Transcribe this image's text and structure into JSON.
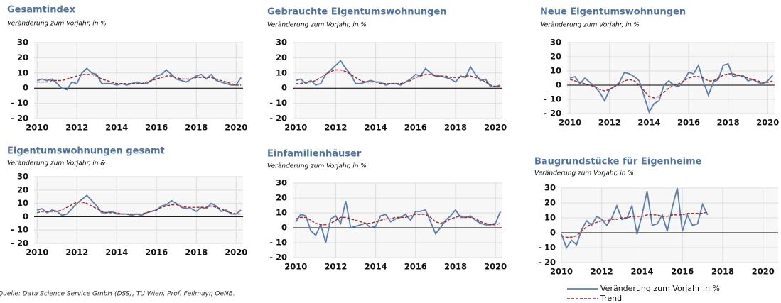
{
  "chart_data": [
    {
      "type": "line",
      "title": "Gesamtindex",
      "subtitle": "Veränderung zum Vorjahr, in %",
      "x": [
        2010,
        2010.25,
        2010.5,
        2010.75,
        2011,
        2011.25,
        2011.5,
        2011.75,
        2012,
        2012.25,
        2012.5,
        2012.75,
        2013,
        2013.25,
        2013.5,
        2013.75,
        2014,
        2014.25,
        2014.5,
        2014.75,
        2015,
        2015.25,
        2015.5,
        2015.75,
        2016,
        2016.25,
        2016.5,
        2016.75,
        2017,
        2017.25,
        2017.5,
        2017.75,
        2018,
        2018.25,
        2018.5,
        2018.75,
        2019,
        2019.25,
        2019.5,
        2019.75,
        2020,
        2020.25
      ],
      "series": [
        {
          "color": "#5b7fad",
          "values": [
            5,
            6,
            5,
            6,
            3,
            0,
            -1,
            4,
            3,
            10,
            13,
            10,
            9,
            3,
            3,
            3,
            2,
            3,
            2,
            3,
            4,
            3,
            3,
            5,
            8,
            9,
            12,
            9,
            6,
            5,
            4,
            6,
            8,
            9,
            6,
            9,
            5,
            4,
            3,
            2,
            2,
            7
          ]
        },
        {
          "color": "#a0282a",
          "dash": true,
          "values": [
            4,
            4,
            4,
            5,
            5,
            5,
            6,
            7,
            8,
            9,
            9,
            9,
            8,
            6,
            5,
            4,
            3,
            3,
            3,
            3,
            3,
            3,
            4,
            5,
            6,
            7,
            8,
            8,
            7,
            6,
            6,
            6,
            7,
            7,
            7,
            7,
            6,
            5,
            4,
            3,
            2,
            2
          ]
        }
      ],
      "xlim": [
        2009.85,
        2020.35
      ],
      "xticks": [
        2010,
        2012,
        2014,
        2016,
        2018,
        2020
      ],
      "ylim": [
        -20,
        30
      ],
      "yticks": [
        {
          "value": -20,
          "label": "- 20"
        },
        {
          "value": -10,
          "label": "- 10"
        },
        0,
        10,
        20,
        30
      ],
      "grid": true
    },
    {
      "type": "line",
      "title": "Gebrauchte Eigentumswohnungen",
      "subtitle": "Veränderung zum Vorjahr, in %",
      "x": [
        2010,
        2010.25,
        2010.5,
        2010.75,
        2011,
        2011.25,
        2011.5,
        2011.75,
        2012,
        2012.25,
        2012.5,
        2012.75,
        2013,
        2013.25,
        2013.5,
        2013.75,
        2014,
        2014.25,
        2014.5,
        2014.75,
        2015,
        2015.25,
        2015.5,
        2015.75,
        2016,
        2016.25,
        2016.5,
        2016.75,
        2017,
        2017.25,
        2017.5,
        2017.75,
        2018,
        2018.25,
        2018.5,
        2018.75,
        2019,
        2019.25,
        2019.5,
        2019.75,
        2020,
        2020.25
      ],
      "series": [
        {
          "color": "#5b7fad",
          "values": [
            5,
            6,
            3,
            5,
            2,
            3,
            9,
            12,
            15,
            18,
            13,
            9,
            3,
            3,
            4,
            5,
            4,
            4,
            2,
            3,
            3,
            2,
            4,
            6,
            9,
            8,
            13,
            10,
            8,
            8,
            7,
            6,
            4,
            8,
            7,
            14,
            9,
            5,
            6,
            1,
            1,
            2
          ]
        },
        {
          "color": "#a0282a",
          "dash": true,
          "values": [
            3,
            3,
            4,
            4,
            5,
            7,
            9,
            11,
            12,
            12,
            11,
            9,
            7,
            5,
            4,
            4,
            4,
            3,
            3,
            3,
            3,
            3,
            4,
            5,
            7,
            8,
            9,
            9,
            8,
            8,
            8,
            7,
            7,
            7,
            8,
            8,
            7,
            6,
            4,
            2,
            1,
            1
          ]
        }
      ],
      "xlim": [
        2009.85,
        2020.35
      ],
      "xticks": [
        2010,
        2012,
        2014,
        2016,
        2018,
        2020
      ],
      "ylim": [
        -20,
        30
      ],
      "yticks": [
        {
          "value": -20,
          "label": "- 20"
        },
        {
          "value": -10,
          "label": "- 10"
        },
        0,
        10,
        20,
        30
      ],
      "grid": true
    },
    {
      "type": "line",
      "title": "Neue Eigentumswohnungen",
      "subtitle": "Veränderung zum Vorjahr, in %",
      "x": [
        2010,
        2010.25,
        2010.5,
        2010.75,
        2011,
        2011.25,
        2011.5,
        2011.75,
        2012,
        2012.25,
        2012.5,
        2012.75,
        2013,
        2013.25,
        2013.5,
        2013.75,
        2014,
        2014.25,
        2014.5,
        2014.75,
        2015,
        2015.25,
        2015.5,
        2015.75,
        2016,
        2016.25,
        2016.5,
        2016.75,
        2017,
        2017.25,
        2017.5,
        2017.75,
        2018,
        2018.25,
        2018.5,
        2018.75,
        2019,
        2019.25,
        2019.5,
        2019.75,
        2020,
        2020.25
      ],
      "series": [
        {
          "color": "#5b7fad",
          "values": [
            5,
            6,
            1,
            5,
            2,
            -1,
            -5,
            -11,
            -3,
            -1,
            2,
            9,
            8,
            6,
            3,
            -8,
            -19,
            -13,
            -11,
            0,
            3,
            0,
            -1,
            3,
            9,
            8,
            14,
            2,
            -7,
            2,
            4,
            14,
            15,
            6,
            7,
            7,
            3,
            4,
            2,
            1,
            3,
            7
          ]
        },
        {
          "color": "#a0282a",
          "dash": true,
          "values": [
            4,
            3,
            2,
            1,
            0,
            -1,
            -3,
            -4,
            -3,
            -1,
            1,
            3,
            4,
            3,
            0,
            -4,
            -8,
            -9,
            -8,
            -5,
            -2,
            0,
            1,
            3,
            5,
            6,
            6,
            5,
            3,
            3,
            5,
            7,
            8,
            8,
            7,
            6,
            5,
            4,
            3,
            2,
            2,
            3
          ]
        }
      ],
      "xlim": [
        2009.85,
        2020.35
      ],
      "xticks": [
        2010,
        2012,
        2014,
        2016,
        2018,
        2020
      ],
      "ylim": [
        -20,
        30
      ],
      "yticks": [
        {
          "value": -20,
          "label": "- 20"
        },
        {
          "value": -10,
          "label": "- 10"
        },
        0,
        10,
        20,
        30
      ],
      "grid": true
    },
    {
      "type": "line",
      "title": "Eigentumswohnungen gesamt",
      "subtitle": "Veränderung zum Vorjahr, in &",
      "x": [
        2010,
        2010.25,
        2010.5,
        2010.75,
        2011,
        2011.25,
        2011.5,
        2011.75,
        2012,
        2012.25,
        2012.5,
        2012.75,
        2013,
        2013.25,
        2013.5,
        2013.75,
        2014,
        2014.25,
        2014.5,
        2014.75,
        2015,
        2015.25,
        2015.5,
        2015.75,
        2016,
        2016.25,
        2016.5,
        2016.75,
        2017,
        2017.25,
        2017.5,
        2017.75,
        2018,
        2018.25,
        2018.5,
        2018.75,
        2019,
        2019.25,
        2019.5,
        2019.75,
        2020,
        2020.25
      ],
      "series": [
        {
          "color": "#5b7fad",
          "values": [
            5,
            6,
            3,
            5,
            4,
            1,
            2,
            6,
            10,
            13,
            16,
            12,
            8,
            3,
            3,
            4,
            2,
            2,
            2,
            1,
            2,
            1,
            3,
            4,
            5,
            8,
            9,
            12,
            10,
            7,
            6,
            6,
            4,
            7,
            6,
            10,
            8,
            4,
            5,
            2,
            2,
            5
          ]
        },
        {
          "color": "#a0282a",
          "dash": true,
          "values": [
            3,
            4,
            4,
            4,
            4,
            5,
            7,
            9,
            11,
            11,
            10,
            8,
            6,
            4,
            3,
            3,
            3,
            2,
            2,
            2,
            2,
            2,
            3,
            4,
            5,
            7,
            8,
            9,
            9,
            8,
            7,
            7,
            7,
            7,
            7,
            8,
            7,
            6,
            4,
            3,
            2,
            2
          ]
        }
      ],
      "xlim": [
        2009.85,
        2020.35
      ],
      "xticks": [
        2010,
        2012,
        2014,
        2016,
        2018,
        2020
      ],
      "ylim": [
        -20,
        30
      ],
      "yticks": [
        {
          "value": -20,
          "label": "- 20"
        },
        {
          "value": -10,
          "label": "- 10"
        },
        0,
        10,
        20,
        30
      ],
      "grid": true
    },
    {
      "type": "line",
      "title": "Einfamilienhäuser",
      "subtitle": "Veränderung zum Vorjahr, in %",
      "x": [
        2010,
        2010.25,
        2010.5,
        2010.75,
        2011,
        2011.25,
        2011.5,
        2011.75,
        2012,
        2012.25,
        2012.5,
        2012.75,
        2013,
        2013.25,
        2013.5,
        2013.75,
        2014,
        2014.25,
        2014.5,
        2014.75,
        2015,
        2015.25,
        2015.5,
        2015.75,
        2016,
        2016.25,
        2016.5,
        2016.75,
        2017,
        2017.25,
        2017.5,
        2017.75,
        2018,
        2018.25,
        2018.5,
        2018.75,
        2019,
        2019.25,
        2019.5,
        2019.75,
        2020,
        2020.25
      ],
      "series": [
        {
          "color": "#5b7fad",
          "values": [
            4,
            9,
            8,
            -2,
            -5,
            2,
            -10,
            6,
            8,
            3,
            18,
            0,
            1,
            2,
            3,
            0,
            1,
            8,
            9,
            4,
            6,
            7,
            9,
            5,
            11,
            11,
            12,
            4,
            -4,
            0,
            5,
            8,
            12,
            7,
            7,
            8,
            5,
            3,
            2,
            2,
            3,
            11
          ]
        },
        {
          "color": "#a0282a",
          "dash": true,
          "values": [
            6,
            7,
            7,
            5,
            3,
            2,
            2,
            3,
            5,
            7,
            7,
            6,
            5,
            4,
            3,
            3,
            4,
            5,
            6,
            6,
            7,
            7,
            7,
            8,
            9,
            9,
            9,
            7,
            4,
            3,
            4,
            6,
            7,
            8,
            7,
            7,
            6,
            4,
            3,
            2,
            2,
            3
          ]
        }
      ],
      "xlim": [
        2009.85,
        2020.35
      ],
      "xticks": [
        2010,
        2012,
        2014,
        2016,
        2018,
        2020
      ],
      "ylim": [
        -20,
        30
      ],
      "yticks": [
        {
          "value": -20,
          "label": "- 20"
        },
        {
          "value": -10,
          "label": "- 10"
        },
        0,
        10,
        20,
        30
      ],
      "grid": true
    },
    {
      "type": "line",
      "title": "Baugrundstücke für Eigenheime",
      "subtitle": "Veränderung zum Vorjahr, in %",
      "x": [
        2010,
        2010.25,
        2010.5,
        2010.75,
        2011,
        2011.25,
        2011.5,
        2011.75,
        2012,
        2012.25,
        2012.5,
        2012.75,
        2013,
        2013.25,
        2013.5,
        2013.75,
        2014,
        2014.25,
        2014.5,
        2014.75,
        2015,
        2015.25,
        2015.5,
        2015.75,
        2016,
        2016.25,
        2016.5,
        2016.75,
        2017,
        2017.25
      ],
      "series": [
        {
          "name": "Veränderung zum Vorjahr in %",
          "color": "#5b7fad",
          "values": [
            -1,
            -10,
            -5,
            -8,
            2,
            8,
            5,
            11,
            9,
            5,
            10,
            18,
            9,
            10,
            18,
            -1,
            12,
            28,
            5,
            6,
            12,
            1,
            17,
            30,
            1,
            12,
            5,
            6,
            19,
            12
          ]
        },
        {
          "name": "Trend",
          "color": "#a0282a",
          "dash": true,
          "values": [
            -2,
            -3,
            -3,
            -2,
            1,
            4,
            6,
            7,
            8,
            8,
            9,
            9,
            10,
            10,
            11,
            11,
            11,
            12,
            12,
            12,
            11,
            11,
            12,
            12,
            12,
            13,
            13,
            13,
            13,
            14
          ]
        }
      ],
      "xlim": [
        2010,
        2020.75
      ],
      "xticks": [
        2010,
        2012,
        2014,
        2016,
        2018,
        2020
      ],
      "ylim": [
        -20,
        30
      ],
      "yticks": [
        {
          "value": -20,
          "label": "- 20"
        },
        {
          "value": -10,
          "label": "- 10"
        },
        0,
        10,
        20,
        30
      ],
      "grid": true,
      "legend": "bottom"
    }
  ],
  "footer": "Quelle: Data Science Service GmbH (DSS), TU Wien, Prof. Feilmayr, OeNB."
}
